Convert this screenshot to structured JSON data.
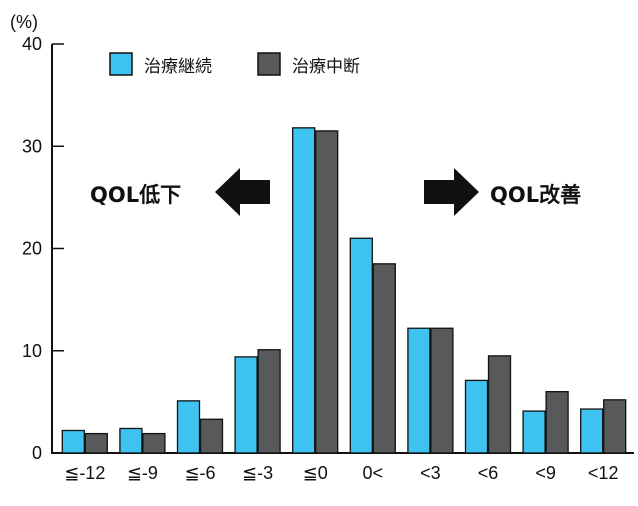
{
  "chart_data": {
    "type": "bar",
    "title": "",
    "ylabel_unit": "(%)",
    "xlabel": "",
    "ylim": [
      0,
      40
    ],
    "yticks": [
      "0",
      "10",
      "20",
      "30",
      "40"
    ],
    "categories": [
      "≦-12",
      "≦-9",
      "≦-6",
      "≦-3",
      "≦0",
      "0<",
      "<3",
      "<6",
      "<9",
      "<12"
    ],
    "series": [
      {
        "name": "治療継続",
        "color": "#3ec3f0",
        "values": [
          2.2,
          2.4,
          5.1,
          9.4,
          31.8,
          21.0,
          12.2,
          7.1,
          4.1,
          4.3
        ]
      },
      {
        "name": "治療中断",
        "color": "#58595b",
        "values": [
          1.9,
          1.9,
          3.3,
          10.1,
          31.5,
          18.5,
          12.2,
          9.5,
          6.0,
          5.2
        ]
      }
    ],
    "legend_position": "top-left",
    "grid": false,
    "annotations": [
      {
        "text": "QOL低下",
        "arrow": "left"
      },
      {
        "text": "QOL改善",
        "arrow": "right"
      }
    ]
  }
}
